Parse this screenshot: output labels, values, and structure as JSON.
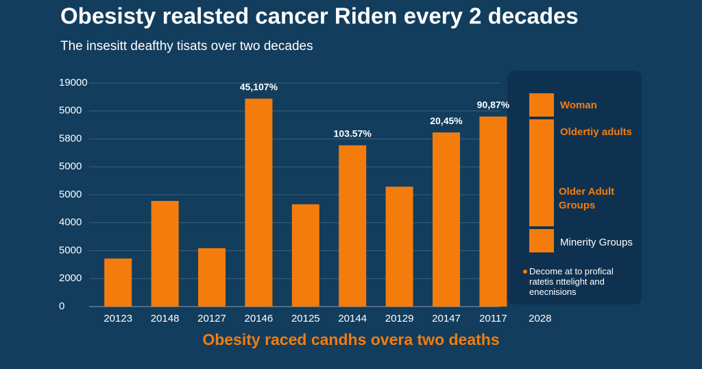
{
  "chart_data": {
    "type": "bar",
    "title": "Obesisty realsted cancer Riden every 2 decades",
    "subtitle": "The insesitt deafthy tisats over two decades",
    "x_label": "Obesity raced candhs overa two deaths",
    "categories": [
      "20123",
      "20148",
      "20127",
      "20146",
      "20125",
      "20144",
      "20129",
      "20147",
      "20117",
      "2028"
    ],
    "values": [
      1.72,
      3.78,
      2.09,
      7.44,
      3.66,
      5.77,
      4.29,
      6.23,
      6.8,
      null
    ],
    "color": "#f47c0c",
    "annotations": [
      {
        "category": "20146",
        "text": "45,107%"
      },
      {
        "category": "20144",
        "text": "103.57%"
      },
      {
        "category": "20147",
        "text": "20,45%"
      },
      {
        "category": "20117",
        "text": "90,87%"
      }
    ],
    "ylim": [
      0,
      8
    ],
    "yticks": [
      0,
      {
        "value": 1,
        "label": "2000"
      },
      {
        "value": 2,
        "label": "5000"
      },
      {
        "value": 3,
        "label": "4000"
      },
      {
        "value": 4,
        "label": "5000"
      },
      {
        "value": 5,
        "label": "5000"
      },
      {
        "value": 6,
        "label": "5800"
      },
      {
        "value": 7,
        "label": "5000"
      },
      {
        "value": 8,
        "label": "19000"
      }
    ],
    "grid": true,
    "legend": [
      "Woman",
      "Oldertiy adults",
      "Older Adult Groups",
      "Minerity Groups"
    ],
    "legend_note": "Decome at to profical ratetis nttelight and enecnisions"
  }
}
